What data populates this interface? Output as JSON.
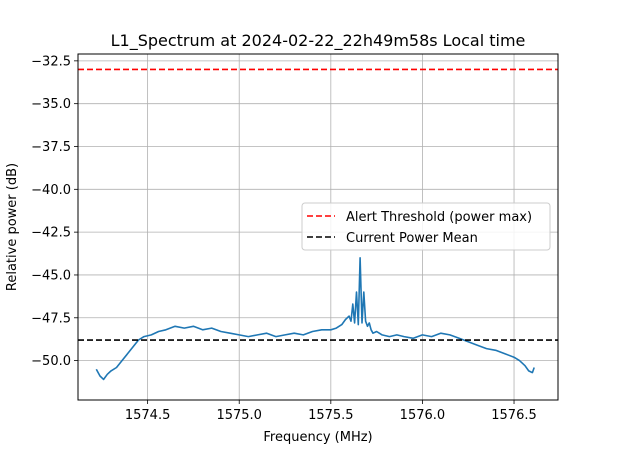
{
  "chart_data": {
    "type": "line",
    "title": "L1_Spectrum at 2024-02-22_22h49m58s Local time",
    "xlabel": "Frequency (MHz)",
    "ylabel": "Relative power (dB)",
    "xlim": [
      1574.12,
      1576.74
    ],
    "ylim": [
      -52.3,
      -32.1
    ],
    "xticks": [
      1574.5,
      1575.0,
      1575.5,
      1576.0,
      1576.5
    ],
    "xtick_labels": [
      "1574.5",
      "1575.0",
      "1575.5",
      "1576.0",
      "1576.5"
    ],
    "yticks": [
      -32.5,
      -35.0,
      -37.5,
      -40.0,
      -42.5,
      -45.0,
      -47.5,
      -50.0
    ],
    "ytick_labels": [
      "−32.5",
      "−35.0",
      "−37.5",
      "−40.0",
      "−42.5",
      "−45.0",
      "−47.5",
      "−50.0"
    ],
    "grid": true,
    "legend": "center-right",
    "series": [
      {
        "color": "#1f77b4",
        "style": "solid",
        "x": [
          1574.22,
          1574.24,
          1574.26,
          1574.28,
          1574.3,
          1574.33,
          1574.36,
          1574.39,
          1574.42,
          1574.45,
          1574.48,
          1574.52,
          1574.56,
          1574.6,
          1574.65,
          1574.7,
          1574.75,
          1574.8,
          1574.85,
          1574.9,
          1574.95,
          1575.0,
          1575.05,
          1575.1,
          1575.15,
          1575.2,
          1575.25,
          1575.3,
          1575.35,
          1575.4,
          1575.45,
          1575.5,
          1575.53,
          1575.56,
          1575.58,
          1575.6,
          1575.61,
          1575.62,
          1575.63,
          1575.64,
          1575.65,
          1575.66,
          1575.67,
          1575.68,
          1575.69,
          1575.7,
          1575.71,
          1575.72,
          1575.73,
          1575.75,
          1575.78,
          1575.82,
          1575.86,
          1575.9,
          1575.95,
          1576.0,
          1576.05,
          1576.1,
          1576.15,
          1576.2,
          1576.25,
          1576.3,
          1576.35,
          1576.4,
          1576.45,
          1576.5,
          1576.53,
          1576.56,
          1576.58,
          1576.6,
          1576.61
        ],
        "y": [
          -50.5,
          -50.9,
          -51.1,
          -50.8,
          -50.6,
          -50.4,
          -50.0,
          -49.6,
          -49.2,
          -48.8,
          -48.6,
          -48.5,
          -48.3,
          -48.2,
          -48.0,
          -48.1,
          -48.0,
          -48.2,
          -48.1,
          -48.3,
          -48.4,
          -48.5,
          -48.6,
          -48.5,
          -48.4,
          -48.6,
          -48.5,
          -48.4,
          -48.5,
          -48.3,
          -48.2,
          -48.2,
          -48.1,
          -47.9,
          -47.6,
          -47.4,
          -47.7,
          -46.7,
          -47.8,
          -46.0,
          -47.9,
          -44.0,
          -47.8,
          -46.0,
          -47.7,
          -48.0,
          -47.8,
          -48.2,
          -48.4,
          -48.3,
          -48.5,
          -48.6,
          -48.5,
          -48.6,
          -48.7,
          -48.5,
          -48.6,
          -48.4,
          -48.5,
          -48.7,
          -48.9,
          -49.1,
          -49.3,
          -49.4,
          -49.6,
          -49.8,
          -50.0,
          -50.3,
          -50.6,
          -50.7,
          -50.4
        ]
      },
      {
        "name": "Alert Threshold (power max)",
        "color": "#ff0000",
        "style": "dashed",
        "y_constant": -33.0
      },
      {
        "name": "Current Power Mean",
        "color": "#000000",
        "style": "dashed",
        "y_constant": -48.8
      }
    ]
  }
}
